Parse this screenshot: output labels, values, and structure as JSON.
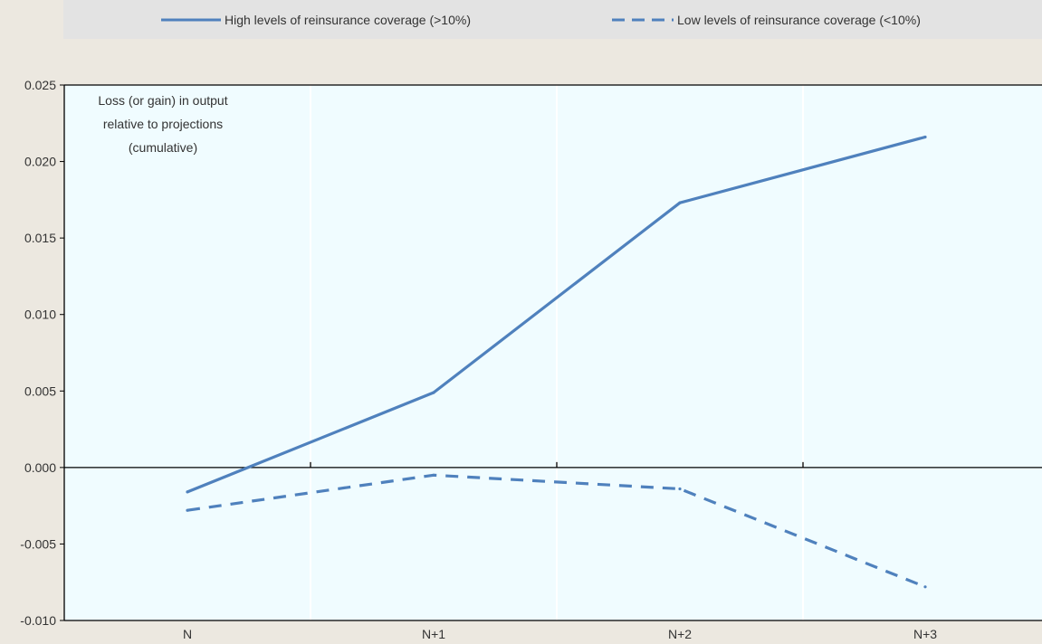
{
  "chart_data": {
    "type": "line",
    "categories": [
      "N",
      "N+1",
      "N+2",
      "N+3"
    ],
    "series": [
      {
        "name": "High levels of reinsurance coverage (>10%)",
        "values": [
          -0.0016,
          0.0049,
          0.0173,
          0.0216
        ],
        "style": "solid",
        "color": "#4f81bd"
      },
      {
        "name": "Low levels of reinsurance coverage (<10%)",
        "values": [
          -0.0028,
          -0.0005,
          -0.0014,
          -0.0078
        ],
        "style": "dashed",
        "color": "#4f81bd"
      }
    ],
    "ylim": [
      -0.01,
      0.025
    ],
    "yticks": [
      "0.025",
      "0.020",
      "0.015",
      "0.010",
      "0.005",
      "0.000",
      "-0.005",
      "-0.010"
    ],
    "ytick_values": [
      0.025,
      0.02,
      0.015,
      0.01,
      0.005,
      0.0,
      -0.005,
      -0.01
    ],
    "annotation": [
      "Loss (or gain) in output",
      "relative to projections",
      "(cumulative)"
    ],
    "legend_position": "top",
    "grid": "vertical",
    "colors": {
      "plot_background": "#f0fcff",
      "page_background": "#ece8e0",
      "legend_background": "#e3e3e3",
      "grid": "#ffffff",
      "axis": "#000000"
    }
  }
}
